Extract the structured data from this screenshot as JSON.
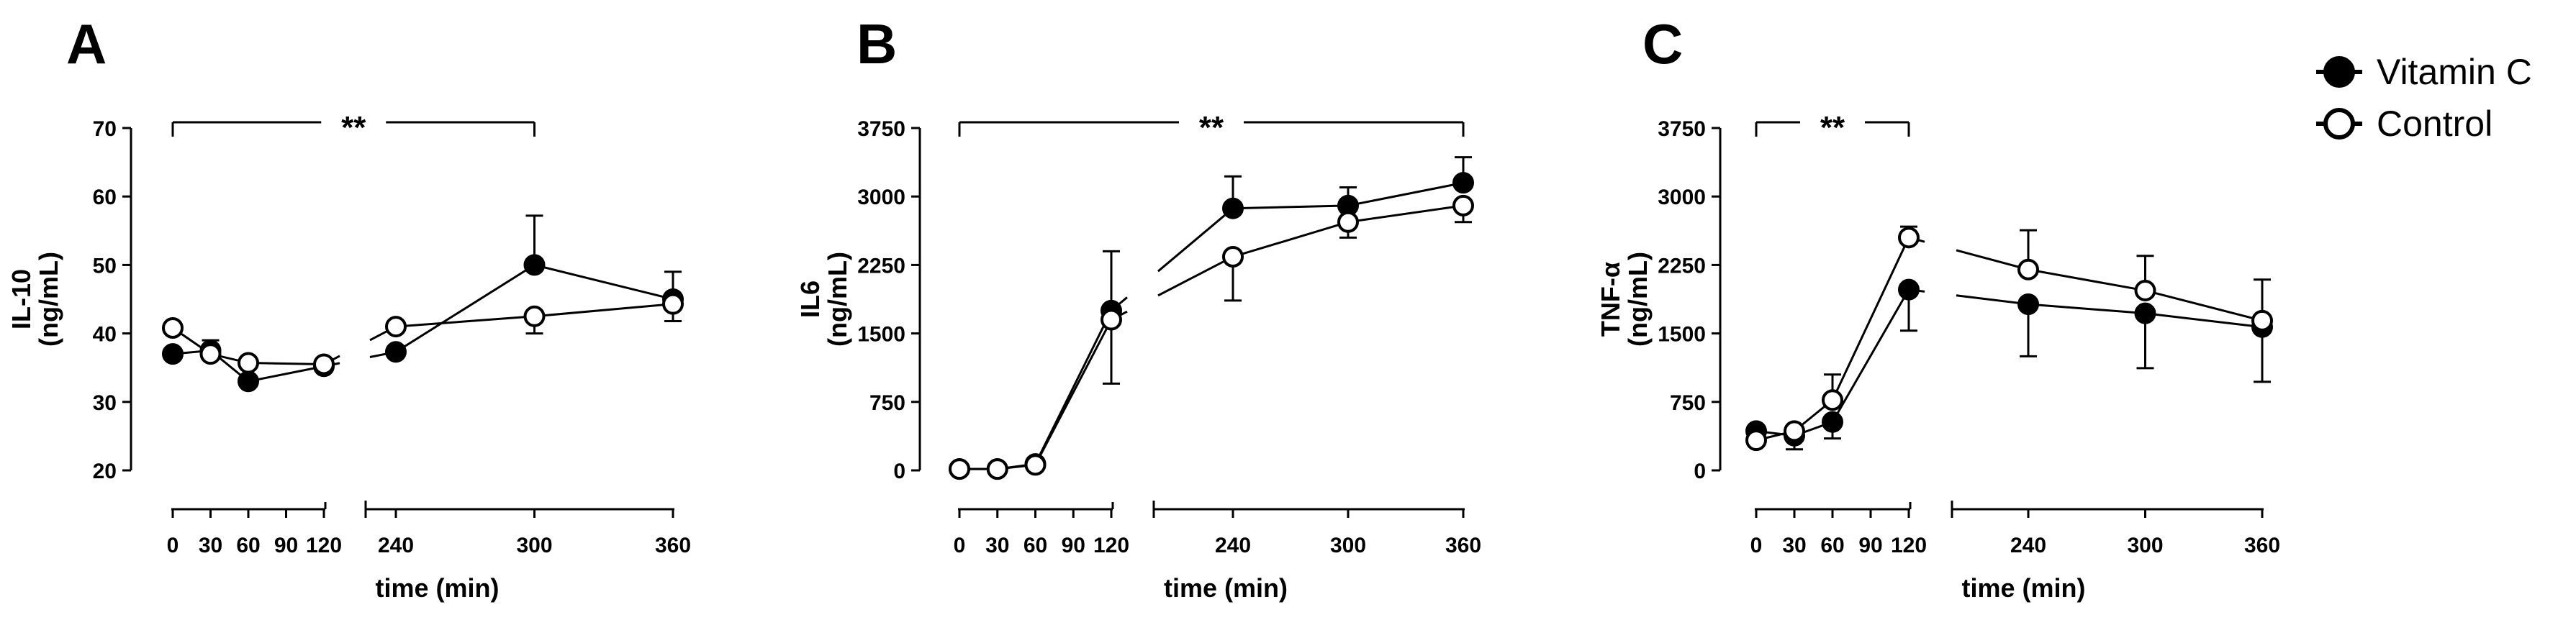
{
  "colors": {
    "ink": "#000000",
    "open_fill": "#ffffff"
  },
  "legend": [
    {
      "label": "Vitamin C",
      "marker": "filled-circle"
    },
    {
      "label": "Control",
      "marker": "open-circle"
    }
  ],
  "chart_data": [
    {
      "type": "line",
      "panel": "A",
      "xlabel": "time (min)",
      "ylabel": [
        "IL-10",
        "(ng/mL)"
      ],
      "ylim": [
        20,
        70
      ],
      "yticks": [
        20,
        30,
        40,
        50,
        60,
        70
      ],
      "ytick_labels": [
        "20",
        "30",
        "40",
        "50",
        "60",
        "70"
      ],
      "x_segment1_ticks": [
        0,
        30,
        60,
        90,
        120
      ],
      "x_segment1_labels": [
        "0",
        "30",
        "60",
        "90",
        "120"
      ],
      "x_segment2_ticks": [
        240,
        300,
        360
      ],
      "x_segment2_labels": [
        "240",
        "300",
        "360"
      ],
      "x": [
        0,
        30,
        60,
        120,
        240,
        300,
        360
      ],
      "series": [
        {
          "name": "Vitamin C",
          "values": [
            37,
            37.5,
            33,
            35.2,
            37.3,
            50,
            45
          ],
          "errors": [
            0,
            1.5,
            0,
            0,
            0,
            7.2,
            4
          ]
        },
        {
          "name": "Control",
          "values": [
            40.8,
            37,
            35.7,
            35.5,
            41,
            42.5,
            44.3
          ],
          "errors": [
            0,
            0,
            0,
            0,
            0,
            2.5,
            2.5
          ]
        }
      ],
      "significance": {
        "label": "**",
        "from": 0,
        "to": 300
      }
    },
    {
      "type": "line",
      "panel": "B",
      "xlabel": "time (min)",
      "ylabel": [
        "IL6",
        "(ng/mL)"
      ],
      "ylim": [
        0,
        3750
      ],
      "yticks": [
        0,
        750,
        1500,
        2250,
        3000,
        3750
      ],
      "ytick_labels": [
        "0",
        "750",
        "1500",
        "2250",
        "3000",
        "3750"
      ],
      "x_segment1_ticks": [
        0,
        30,
        60,
        90,
        120
      ],
      "x_segment1_labels": [
        "0",
        "30",
        "60",
        "90",
        "120"
      ],
      "x_segment2_ticks": [
        240,
        300,
        360
      ],
      "x_segment2_labels": [
        "240",
        "300",
        "360"
      ],
      "x": [
        0,
        30,
        60,
        120,
        240,
        300,
        360
      ],
      "series": [
        {
          "name": "Vitamin C",
          "values": [
            15,
            15,
            70,
            1750,
            2870,
            2900,
            3150
          ],
          "errors": [
            0,
            0,
            0,
            650,
            350,
            200,
            280
          ]
        },
        {
          "name": "Control",
          "values": [
            15,
            15,
            60,
            1650,
            2340,
            2720,
            2900
          ],
          "errors": [
            0,
            0,
            0,
            700,
            480,
            170,
            180
          ]
        }
      ],
      "significance": {
        "label": "**",
        "from": 0,
        "to": 360
      }
    },
    {
      "type": "line",
      "panel": "C",
      "xlabel": "time (min)",
      "ylabel": [
        "TNF-α",
        "(ng/mL)"
      ],
      "ylim": [
        0,
        3750
      ],
      "yticks": [
        0,
        750,
        1500,
        2250,
        3000,
        3750
      ],
      "ytick_labels": [
        "0",
        "750",
        "1500",
        "2250",
        "3000",
        "3750"
      ],
      "x_segment1_ticks": [
        0,
        30,
        60,
        90,
        120
      ],
      "x_segment1_labels": [
        "0",
        "30",
        "60",
        "90",
        "120"
      ],
      "x_segment2_ticks": [
        240,
        300,
        360
      ],
      "x_segment2_labels": [
        "240",
        "300",
        "360"
      ],
      "x": [
        0,
        30,
        60,
        120,
        240,
        300,
        360
      ],
      "series": [
        {
          "name": "Vitamin C",
          "values": [
            430,
            380,
            530,
            1980,
            1820,
            1720,
            1570
          ],
          "errors": [
            0,
            150,
            180,
            450,
            570,
            600,
            600
          ]
        },
        {
          "name": "Control",
          "values": [
            330,
            430,
            770,
            2550,
            2200,
            1970,
            1640
          ],
          "errors": [
            0,
            0,
            280,
            120,
            430,
            380,
            450
          ]
        }
      ],
      "significance": {
        "label": "**",
        "from": 0,
        "to": 120
      }
    }
  ]
}
